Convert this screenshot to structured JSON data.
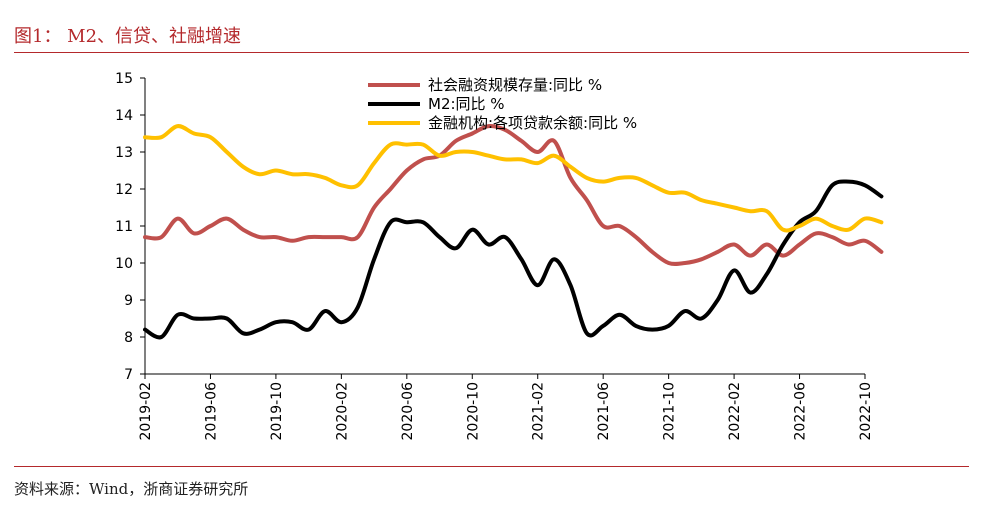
{
  "header": {
    "title": "图1：  M2、信贷、社融增速"
  },
  "footer": {
    "source": "资料来源：Wind，浙商证券研究所"
  },
  "chart_data": {
    "type": "line",
    "title": "",
    "xlabel": "",
    "ylabel": "",
    "ylim": [
      7,
      15
    ],
    "yticks": [
      "7",
      "8",
      "9",
      "10",
      "11",
      "12",
      "13",
      "14",
      "15"
    ],
    "xlim": [
      0,
      44
    ],
    "xtick_index": [
      0,
      4,
      8,
      12,
      16,
      20,
      24,
      28,
      32,
      36,
      40,
      44
    ],
    "xtick_labels": [
      "2019-02",
      "2019-06",
      "2019-10",
      "2020-02",
      "2020-06",
      "2020-10",
      "2021-02",
      "2021-06",
      "2021-10",
      "2022-02",
      "2022-06",
      "2022-10"
    ],
    "grid": false,
    "legend_position": "top-center",
    "series": [
      {
        "name": "社会融资规模存量:同比 %",
        "color": "#c0504d",
        "values": [
          10.7,
          10.7,
          11.2,
          10.8,
          11.0,
          11.2,
          10.9,
          10.7,
          10.7,
          10.6,
          10.7,
          10.7,
          10.7,
          10.7,
          11.5,
          12.0,
          12.5,
          12.8,
          12.9,
          13.3,
          13.5,
          13.7,
          13.6,
          13.3,
          13.0,
          13.3,
          12.3,
          11.7,
          11.0,
          11.0,
          10.7,
          10.3,
          10.0,
          10.0,
          10.1,
          10.3,
          10.5,
          10.2,
          10.5,
          10.2,
          10.5,
          10.8,
          10.7,
          10.5,
          10.6,
          10.3
        ]
      },
      {
        "name": "M2:同比 %",
        "color": "#000000",
        "values": [
          8.2,
          8.0,
          8.6,
          8.5,
          8.5,
          8.5,
          8.1,
          8.2,
          8.4,
          8.4,
          8.2,
          8.7,
          8.4,
          8.8,
          10.1,
          11.1,
          11.1,
          11.1,
          10.7,
          10.4,
          10.9,
          10.5,
          10.7,
          10.1,
          9.4,
          10.1,
          9.4,
          8.1,
          8.3,
          8.6,
          8.3,
          8.2,
          8.3,
          8.7,
          8.5,
          9.0,
          9.8,
          9.2,
          9.7,
          10.5,
          11.1,
          11.4,
          12.1,
          12.2,
          12.1,
          11.8
        ]
      },
      {
        "name": "金融机构:各项贷款余额:同比 %",
        "color": "#ffc000",
        "values": [
          13.4,
          13.4,
          13.7,
          13.5,
          13.4,
          13.0,
          12.6,
          12.4,
          12.5,
          12.4,
          12.4,
          12.3,
          12.1,
          12.1,
          12.7,
          13.2,
          13.2,
          13.2,
          12.9,
          13.0,
          13.0,
          12.9,
          12.8,
          12.8,
          12.7,
          12.9,
          12.6,
          12.3,
          12.2,
          12.3,
          12.3,
          12.1,
          11.9,
          11.9,
          11.7,
          11.6,
          11.5,
          11.4,
          11.4,
          10.9,
          11.0,
          11.2,
          11.0,
          10.9,
          11.2,
          11.1
        ]
      }
    ]
  }
}
